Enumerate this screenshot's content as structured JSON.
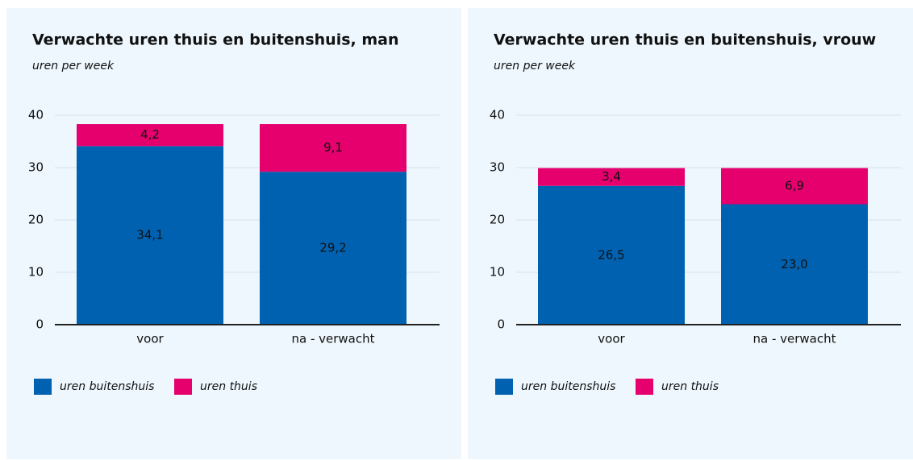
{
  "chart_data": [
    {
      "type": "stacked_bar",
      "title": "Verwachte uren thuis en buitenshuis, man",
      "subtitle": "uren per week",
      "categories": [
        "voor",
        "na - verwacht"
      ],
      "series": [
        {
          "name": "uren buitenshuis",
          "color": "#0061b0",
          "values": [
            34.1,
            29.2
          ],
          "value_labels": [
            "34,1",
            "29,2"
          ]
        },
        {
          "name": "uren thuis",
          "color": "#e5006d",
          "values": [
            4.2,
            9.1
          ],
          "value_labels": [
            "4,2",
            "9,1"
          ]
        }
      ],
      "ylim": [
        0,
        40
      ],
      "yticks": [
        0,
        10,
        20,
        30,
        40
      ],
      "grid": true,
      "legend": "bottom"
    },
    {
      "type": "stacked_bar",
      "title": "Verwachte uren thuis en buitenshuis, vrouw",
      "subtitle": "uren per week",
      "categories": [
        "voor",
        "na - verwacht"
      ],
      "series": [
        {
          "name": "uren buitenshuis",
          "color": "#0061b0",
          "values": [
            26.5,
            23.0
          ],
          "value_labels": [
            "26,5",
            "23,0"
          ]
        },
        {
          "name": "uren thuis",
          "color": "#e5006d",
          "values": [
            3.4,
            6.9
          ],
          "value_labels": [
            "3,4",
            "6,9"
          ]
        }
      ],
      "ylim": [
        0,
        40
      ],
      "yticks": [
        0,
        10,
        20,
        30,
        40
      ],
      "grid": true,
      "legend": "bottom"
    }
  ]
}
